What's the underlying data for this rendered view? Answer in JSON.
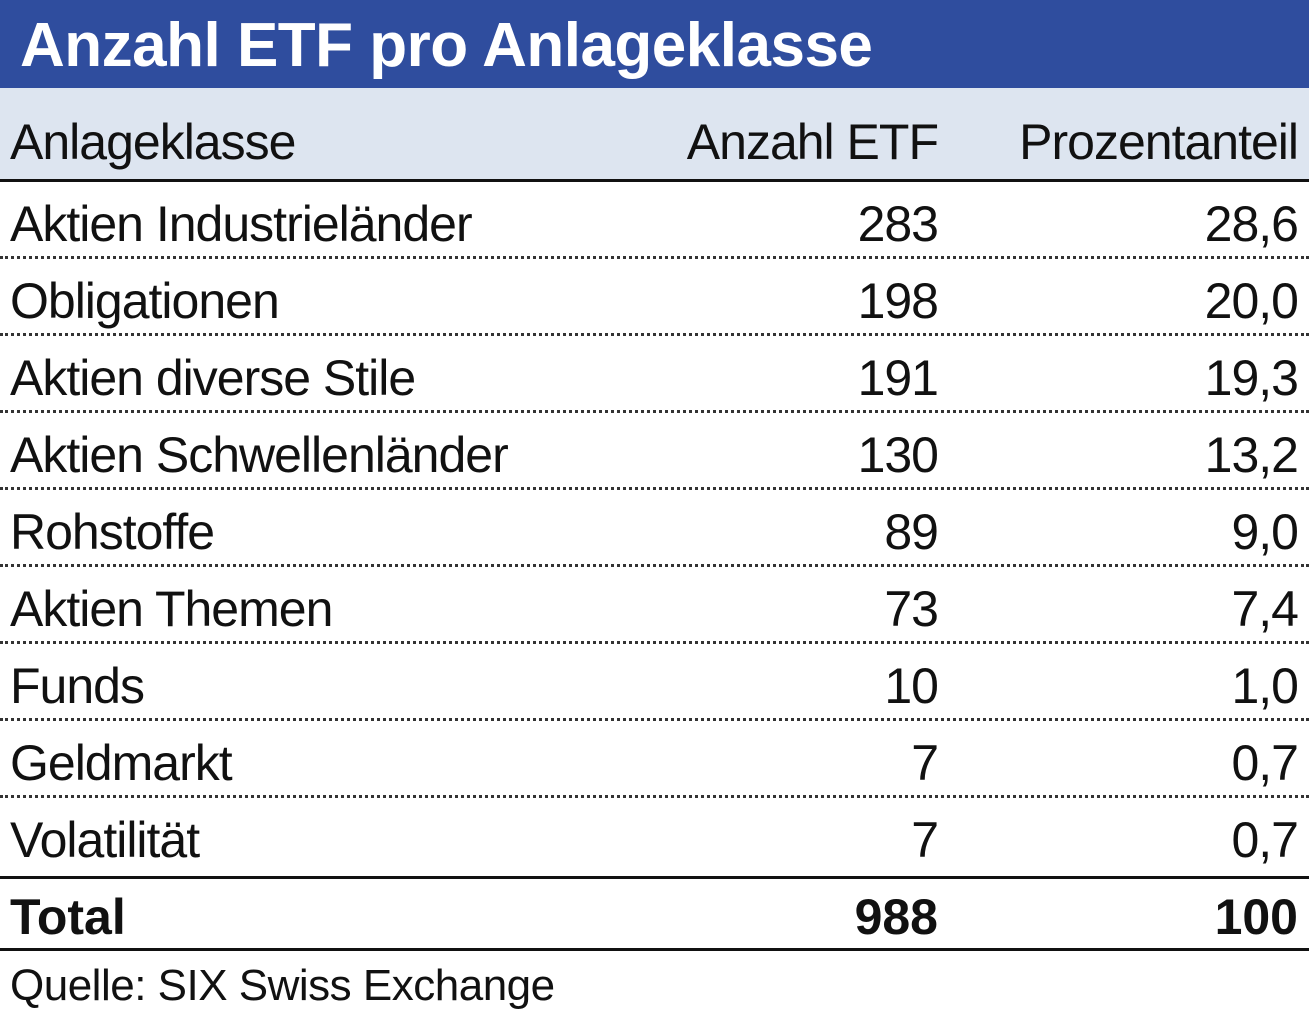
{
  "title": "Anzahl ETF pro Anlageklasse",
  "header": {
    "col_name": "Anlageklasse",
    "col_count": "Anzahl ETF",
    "col_pct": "Prozentanteil"
  },
  "chart_data": {
    "type": "table",
    "title": "Anzahl ETF pro Anlageklasse",
    "columns": [
      "Anlageklasse",
      "Anzahl ETF",
      "Prozentanteil"
    ],
    "rows": [
      {
        "name": "Aktien Industrieländer",
        "count": "283",
        "pct": "28,6"
      },
      {
        "name": "Obligationen",
        "count": "198",
        "pct": "20,0"
      },
      {
        "name": "Aktien diverse Stile",
        "count": "191",
        "pct": "19,3"
      },
      {
        "name": "Aktien Schwellenländer",
        "count": "130",
        "pct": "13,2"
      },
      {
        "name": "Rohstoffe",
        "count": "89",
        "pct": "9,0"
      },
      {
        "name": "Aktien Themen",
        "count": "73",
        "pct": "7,4"
      },
      {
        "name": "Funds",
        "count": "10",
        "pct": "1,0"
      },
      {
        "name": "Geldmarkt",
        "count": "7",
        "pct": "0,7"
      },
      {
        "name": "Volatilität",
        "count": "7",
        "pct": "0,7"
      }
    ],
    "total": {
      "name": "Total",
      "count": "988",
      "pct": "100"
    }
  },
  "source": "Quelle: SIX Swiss Exchange",
  "colors": {
    "title_background": "#2f4d9e",
    "header_background": "#dde5f0"
  }
}
